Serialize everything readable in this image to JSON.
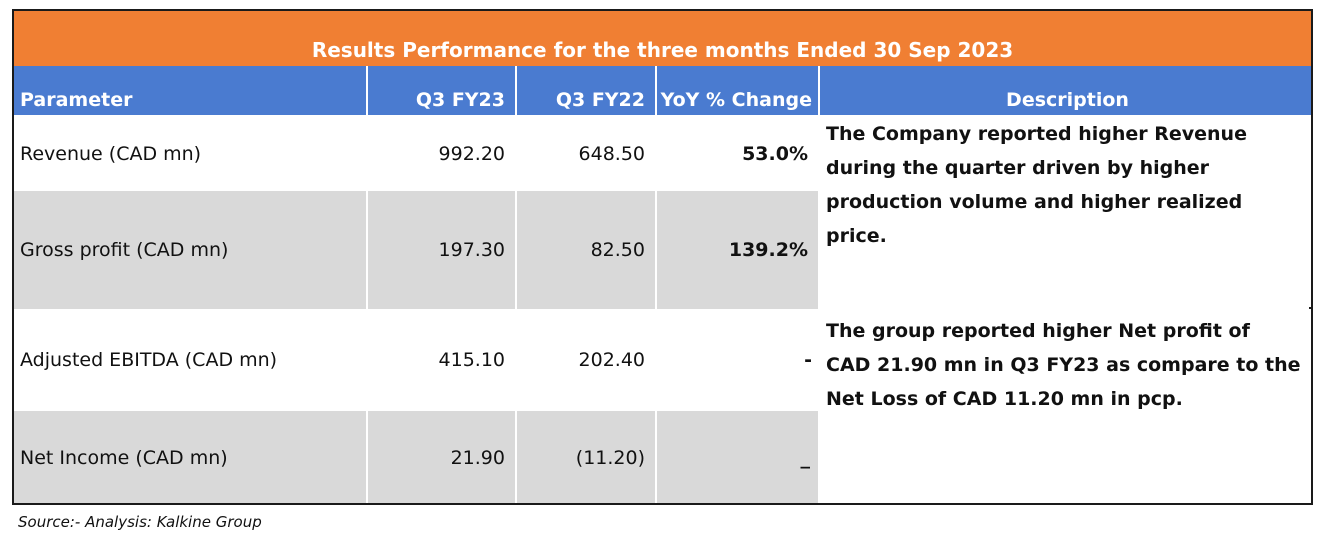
{
  "title": "Results Performance for the three months Ended 30 Sep  2023",
  "columns": {
    "parameter": "Parameter",
    "q3fy23": "Q3 FY23",
    "q3fy22": "Q3 FY22",
    "yoy": "YoY % Change",
    "description": "Description"
  },
  "rows": [
    {
      "parameter": "Revenue (CAD mn)",
      "q3fy23": "992.20",
      "q3fy22": "648.50",
      "yoy": "53.0%"
    },
    {
      "parameter": "Gross profit (CAD mn)",
      "q3fy23": "197.30",
      "q3fy22": "82.50",
      "yoy": "139.2%"
    },
    {
      "parameter": "Adjusted EBITDA (CAD mn)",
      "q3fy23": "415.10",
      "q3fy22": "202.40",
      "yoy": "-"
    },
    {
      "parameter": "Net Income  (CAD mn)",
      "q3fy23": "21.90",
      "q3fy22": "(11.20)",
      "yoy": "_"
    }
  ],
  "descriptions": [
    [
      "The Company reported  higher Revenue",
      "during the quarter driven by higher",
      "production volume and higher realized",
      "price."
    ],
    [
      "The group reported  higher Net profit of",
      "CAD 21.90 mn in Q3 FY23 as compare to the",
      "Net Loss  of CAD 11.20 mn in pcp."
    ]
  ],
  "source": "Source:- Analysis: Kalkine Group",
  "colors": {
    "title_bg": "#f07f33",
    "header_bg": "#4a7bd0",
    "row_shade": "#d9d9d9"
  }
}
